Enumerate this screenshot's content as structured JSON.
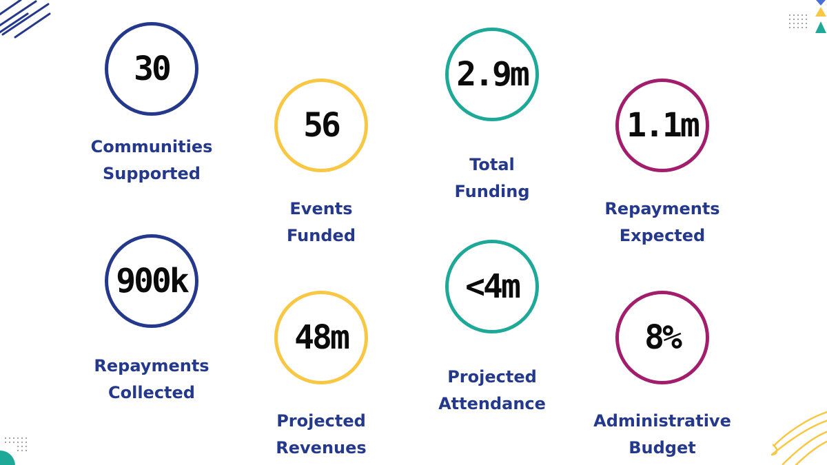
{
  "colors": {
    "navy": "#24388c",
    "yellow": "#f8c844",
    "teal": "#1ea897",
    "magenta": "#a21d6b",
    "value_text": "#0b0b0b",
    "label_text": "#24388c"
  },
  "stats": [
    {
      "value": "30",
      "label_line1": "Communities",
      "label_line2": "Supported",
      "color": "#24388c"
    },
    {
      "value": "56",
      "label_line1": "Events",
      "label_line2": "Funded",
      "color": "#f8c844"
    },
    {
      "value": "2.9m",
      "label_line1": "Total",
      "label_line2": "Funding",
      "color": "#1ea897"
    },
    {
      "value": "1.1m",
      "label_line1": "Repayments",
      "label_line2": "Expected",
      "color": "#a21d6b"
    },
    {
      "value": "900k",
      "label_line1": "Repayments",
      "label_line2": "Collected",
      "color": "#24388c"
    },
    {
      "value": "48m",
      "label_line1": "Projected",
      "label_line2": "Revenues",
      "color": "#f8c844"
    },
    {
      "value": "<4m",
      "label_line1": "Projected",
      "label_line2": "Attendance",
      "color": "#1ea897"
    },
    {
      "value": "8%",
      "label_line1": "Administrative",
      "label_line2": "Budget",
      "color": "#a21d6b"
    }
  ],
  "decorations": {
    "top_left": "navy-scribble-lines",
    "top_right": "dot-grid-and-triangles",
    "bottom_left": "dot-grid-and-teal-semicircle",
    "bottom_right": "yellow-scribble-lines"
  }
}
